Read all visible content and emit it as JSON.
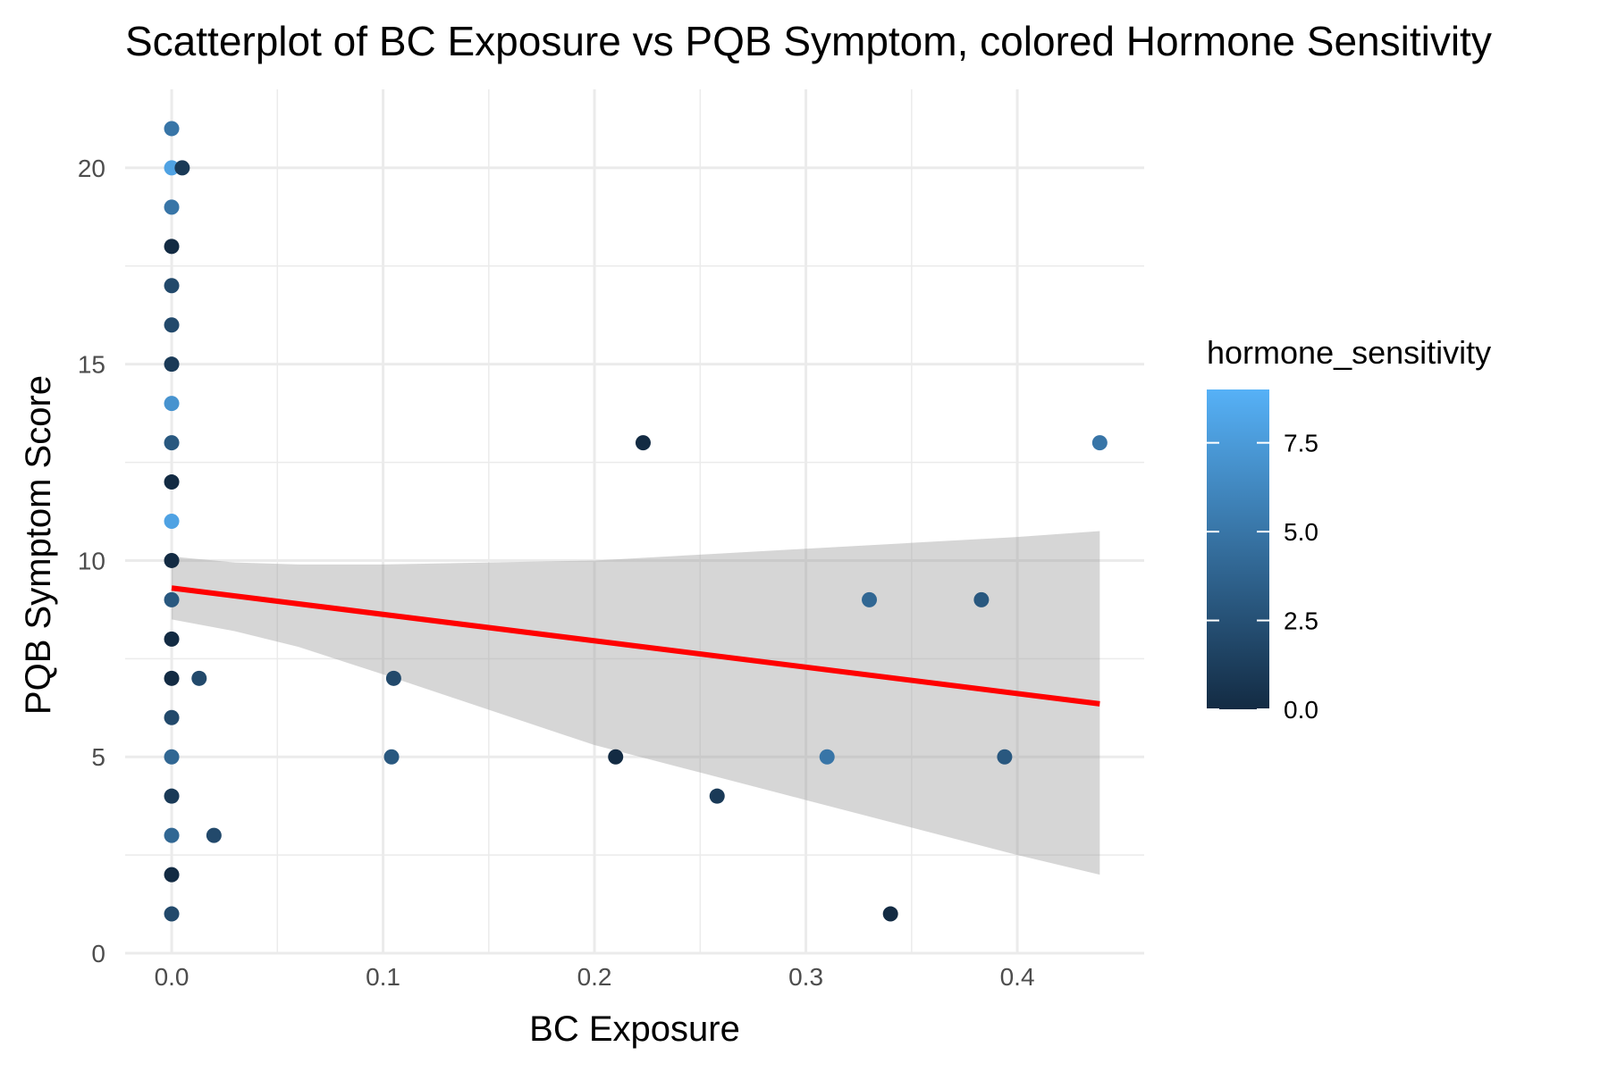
{
  "chart_data": {
    "type": "scatter",
    "title": "Scatterplot of BC Exposure vs PQB Symptom, colored Hormone Sensitivity",
    "xlabel": "BC Exposure",
    "ylabel": "PQB Symptom Score",
    "xlim": [
      -0.022,
      0.46
    ],
    "ylim": [
      0,
      22
    ],
    "x_ticks": [
      "0.0",
      "0.1",
      "0.2",
      "0.3",
      "0.4"
    ],
    "y_ticks": [
      "0",
      "5",
      "10",
      "15",
      "20"
    ],
    "x_tick_values": [
      0.0,
      0.1,
      0.2,
      0.3,
      0.4
    ],
    "y_tick_values": [
      0,
      5,
      10,
      15,
      20
    ],
    "grid": true,
    "legend": {
      "title": "hormone_sensitivity",
      "position": "right",
      "range": [
        0,
        9
      ],
      "color_low": "#132b43",
      "color_high": "#56b1f7",
      "labels": [
        "0.0",
        "2.5",
        "5.0",
        "7.5"
      ],
      "label_values": [
        0.0,
        2.5,
        5.0,
        7.5
      ]
    },
    "points": [
      {
        "x": 0.0,
        "y": 21,
        "h": 5
      },
      {
        "x": 0.0,
        "y": 20,
        "h": 8
      },
      {
        "x": 0.005,
        "y": 20,
        "h": 1
      },
      {
        "x": 0.0,
        "y": 19,
        "h": 5
      },
      {
        "x": 0.0,
        "y": 18,
        "h": 0
      },
      {
        "x": 0.0,
        "y": 17,
        "h": 2
      },
      {
        "x": 0.0,
        "y": 16,
        "h": 2
      },
      {
        "x": 0.0,
        "y": 15,
        "h": 1
      },
      {
        "x": 0.0,
        "y": 14,
        "h": 7
      },
      {
        "x": 0.0,
        "y": 13,
        "h": 3
      },
      {
        "x": 0.0,
        "y": 12,
        "h": 0
      },
      {
        "x": 0.0,
        "y": 11,
        "h": 8
      },
      {
        "x": 0.0,
        "y": 10,
        "h": 0
      },
      {
        "x": 0.0,
        "y": 9,
        "h": 3
      },
      {
        "x": 0.0,
        "y": 8,
        "h": 0
      },
      {
        "x": 0.0,
        "y": 7,
        "h": 0
      },
      {
        "x": 0.0,
        "y": 6,
        "h": 2
      },
      {
        "x": 0.0,
        "y": 5,
        "h": 4
      },
      {
        "x": 0.0,
        "y": 4,
        "h": 1
      },
      {
        "x": 0.0,
        "y": 3,
        "h": 4
      },
      {
        "x": 0.0,
        "y": 2,
        "h": 0
      },
      {
        "x": 0.0,
        "y": 1,
        "h": 2
      },
      {
        "x": 0.013,
        "y": 7,
        "h": 2
      },
      {
        "x": 0.02,
        "y": 3,
        "h": 2
      },
      {
        "x": 0.105,
        "y": 7,
        "h": 2
      },
      {
        "x": 0.104,
        "y": 5,
        "h": 3
      },
      {
        "x": 0.21,
        "y": 5,
        "h": 0
      },
      {
        "x": 0.223,
        "y": 13,
        "h": 0
      },
      {
        "x": 0.258,
        "y": 4,
        "h": 1
      },
      {
        "x": 0.31,
        "y": 5,
        "h": 5
      },
      {
        "x": 0.33,
        "y": 9,
        "h": 4
      },
      {
        "x": 0.34,
        "y": 1,
        "h": 0
      },
      {
        "x": 0.383,
        "y": 9,
        "h": 3
      },
      {
        "x": 0.394,
        "y": 5,
        "h": 3
      },
      {
        "x": 0.439,
        "y": 13,
        "h": 5
      }
    ],
    "regression": {
      "color": "#ff0000",
      "x": [
        0.0,
        0.439
      ],
      "y": [
        9.3,
        6.35
      ],
      "band_color": "#999999",
      "band": [
        {
          "x": 0.0,
          "lo": 8.5,
          "hi": 10.1
        },
        {
          "x": 0.03,
          "lo": 8.2,
          "hi": 9.95
        },
        {
          "x": 0.06,
          "lo": 7.8,
          "hi": 9.9
        },
        {
          "x": 0.1,
          "lo": 7.1,
          "hi": 9.9
        },
        {
          "x": 0.15,
          "lo": 6.2,
          "hi": 9.95
        },
        {
          "x": 0.2,
          "lo": 5.3,
          "hi": 10.0
        },
        {
          "x": 0.25,
          "lo": 4.6,
          "hi": 10.15
        },
        {
          "x": 0.3,
          "lo": 3.9,
          "hi": 10.3
        },
        {
          "x": 0.35,
          "lo": 3.2,
          "hi": 10.45
        },
        {
          "x": 0.4,
          "lo": 2.5,
          "hi": 10.6
        },
        {
          "x": 0.439,
          "lo": 2.0,
          "hi": 10.75
        }
      ]
    }
  }
}
